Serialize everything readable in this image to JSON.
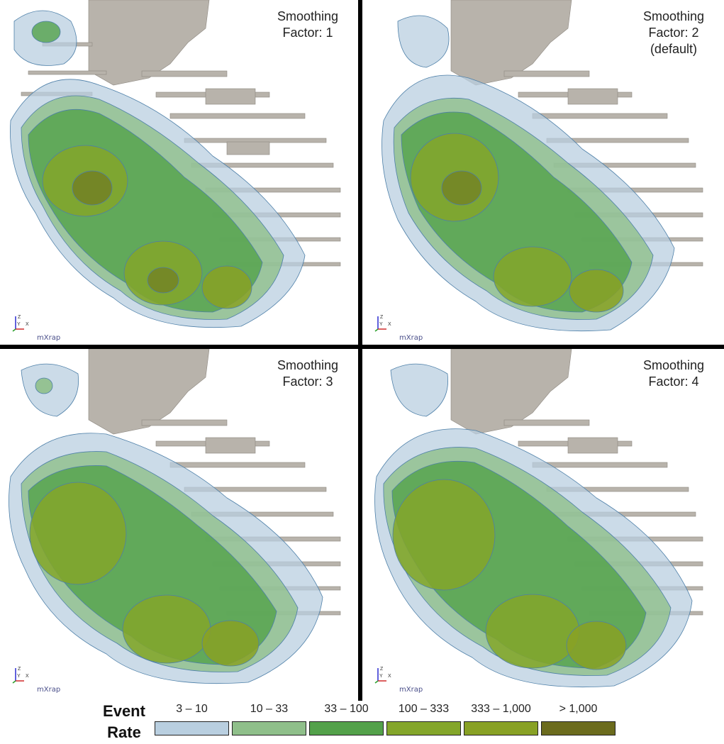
{
  "panels": [
    {
      "title_line1": "Smoothing",
      "title_line2": "Factor: 1",
      "title_line3": "",
      "brand": "mXrap"
    },
    {
      "title_line1": "Smoothing",
      "title_line2": "Factor: 2",
      "title_line3": "(default)",
      "brand": "mXrap"
    },
    {
      "title_line1": "Smoothing",
      "title_line2": "Factor: 3",
      "title_line3": "",
      "brand": "mXrap"
    },
    {
      "title_line1": "Smoothing",
      "title_line2": "Factor: 4",
      "title_line3": "",
      "brand": "mXrap"
    }
  ],
  "axis_labels": {
    "z": "Z",
    "y": "Y",
    "x": "X"
  },
  "legend": {
    "title_line1": "Event",
    "title_line2": "Rate",
    "items": [
      {
        "label": "3 – 10",
        "color": "#b9cfe0"
      },
      {
        "label": "10 – 33",
        "color": "#8fbf8a"
      },
      {
        "label": "33 – 100",
        "color": "#53a14a"
      },
      {
        "label": "100 – 333",
        "color": "#84a62a"
      },
      {
        "label": "333 – 1,000",
        "color": "#88a125"
      },
      {
        "label": "> 1,000",
        "color": "#6b6b1d"
      }
    ]
  }
}
